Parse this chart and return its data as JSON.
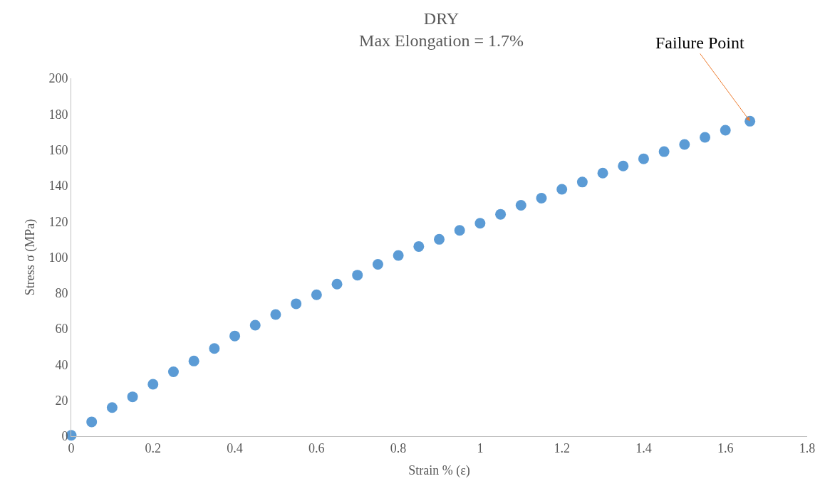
{
  "chart_data": {
    "type": "scatter",
    "title": "DRY",
    "subtitle": "Max Elongation = 1.7%",
    "xlabel": "Strain % (ε)",
    "ylabel": "Stress σ (MPa)",
    "x": [
      0,
      0.05,
      0.1,
      0.15,
      0.2,
      0.25,
      0.3,
      0.35,
      0.4,
      0.45,
      0.5,
      0.55,
      0.6,
      0.65,
      0.7,
      0.75,
      0.8,
      0.85,
      0.9,
      0.95,
      1.0,
      1.05,
      1.1,
      1.15,
      1.2,
      1.25,
      1.3,
      1.35,
      1.4,
      1.45,
      1.5,
      1.55,
      1.6,
      1.66
    ],
    "series": [
      {
        "color": "#5b9bd5",
        "values": [
          0.5,
          8,
          16,
          22,
          29,
          36,
          42,
          49,
          56,
          62,
          68,
          74,
          79,
          85,
          90,
          96,
          101,
          106,
          110,
          115,
          119,
          124,
          129,
          133,
          138,
          142,
          147,
          151,
          155,
          159,
          163,
          167,
          171,
          176
        ]
      }
    ],
    "xlim": [
      0,
      1.8
    ],
    "xticks": [
      0,
      0.2,
      0.4,
      0.6,
      0.8,
      1,
      1.2,
      1.4,
      1.6,
      1.8
    ],
    "ylim": [
      0,
      200
    ],
    "yticks": [
      0,
      20,
      40,
      60,
      80,
      100,
      120,
      140,
      160,
      180,
      200
    ],
    "grid": false,
    "marker": "circle",
    "annotations": [
      {
        "text": "Failure Point",
        "x": 1.66,
        "y": 176
      }
    ]
  }
}
